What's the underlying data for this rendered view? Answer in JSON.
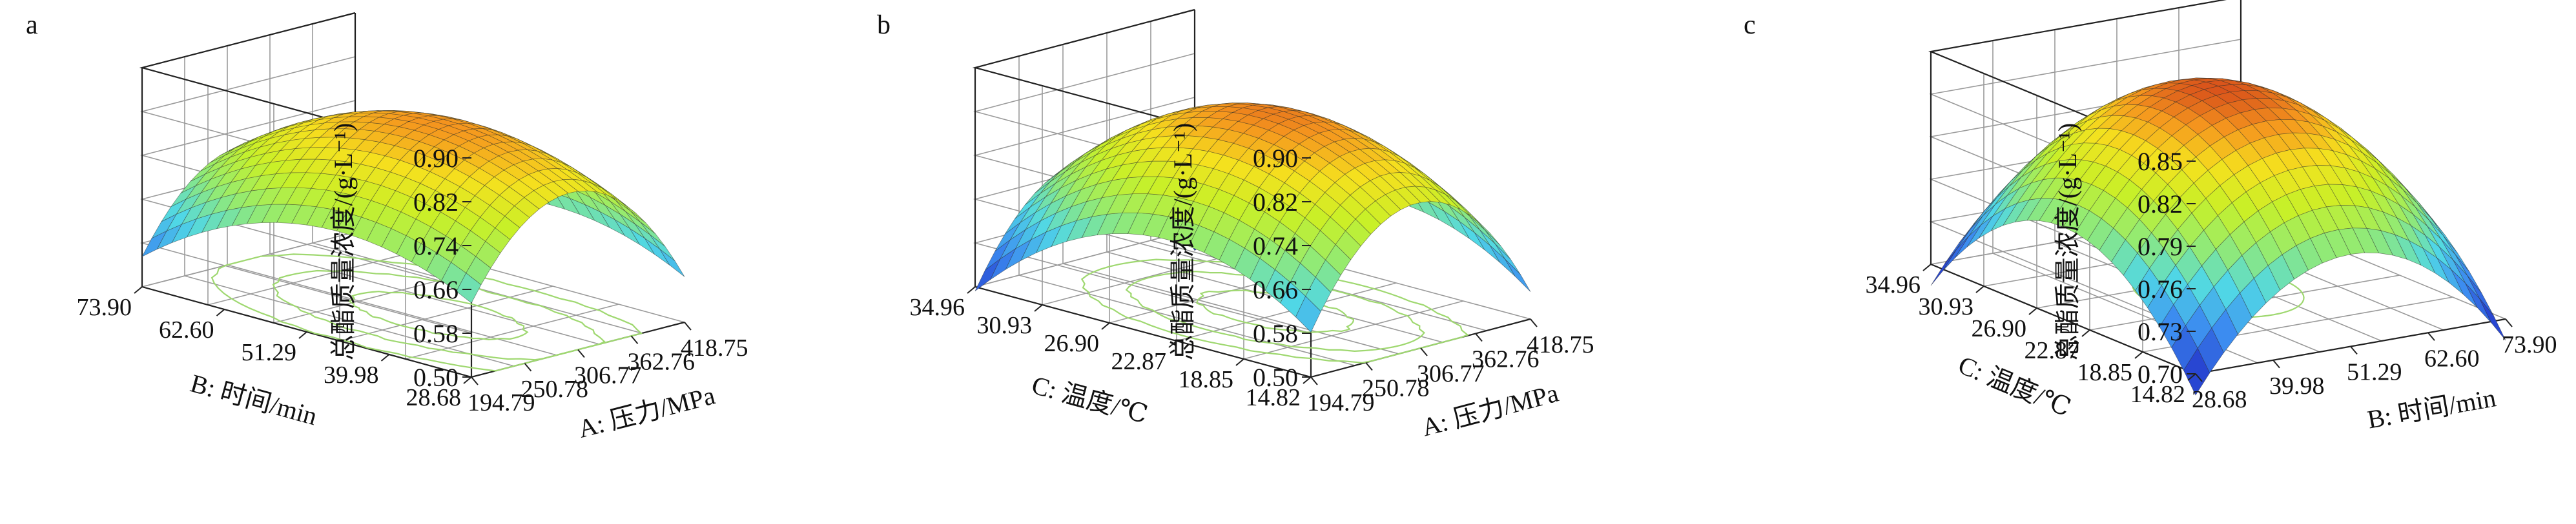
{
  "chart_data": [
    {
      "type": "surface",
      "panel_label": "a",
      "zlabel": "总酯质量浓度/(g·L⁻¹)",
      "z_ticks": [
        "0.50",
        "0.58",
        "0.66",
        "0.74",
        "0.82",
        "0.90"
      ],
      "zlim": [
        0.5,
        0.9
      ],
      "x_axis_label": "A: 压力/MPa",
      "x_ticks": [
        "194.79",
        "250.78",
        "306.77",
        "362.76",
        "418.75"
      ],
      "y_axis_label": "B: 时间/min",
      "y_ticks": [
        "28.68",
        "39.98",
        "51.29",
        "62.60",
        "73.90"
      ],
      "surface": {
        "peak": 0.855,
        "px": 0.45,
        "py": 0.4,
        "ax": 0.18,
        "ay": 0.1,
        "skew": 0.02
      },
      "contour_levels": [
        0.83,
        0.77,
        0.7
      ],
      "grid": true
    },
    {
      "type": "surface",
      "panel_label": "b",
      "zlabel": "总酯质量浓度/(g·L⁻¹)",
      "z_ticks": [
        "0.50",
        "0.58",
        "0.66",
        "0.74",
        "0.82",
        "0.90"
      ],
      "zlim": [
        0.5,
        0.9
      ],
      "x_axis_label": "A: 压力/MPa",
      "x_ticks": [
        "194.79",
        "250.78",
        "306.77",
        "362.76",
        "418.75"
      ],
      "y_axis_label": "C: 温度/℃",
      "y_ticks": [
        "14.82",
        "18.85",
        "22.87",
        "26.90",
        "30.93",
        "34.96"
      ],
      "surface": {
        "peak": 0.865,
        "px": 0.48,
        "py": 0.42,
        "ax": 0.2,
        "ay": 0.14,
        "skew": 0.0
      },
      "contour_levels": [
        0.84,
        0.78,
        0.72
      ],
      "grid": true
    },
    {
      "type": "surface",
      "panel_label": "c",
      "zlabel": "总酯质量浓度/(g·L⁻¹)",
      "z_ticks": [
        "0.70",
        "0.73",
        "0.76",
        "0.79",
        "0.82",
        "0.85"
      ],
      "zlim": [
        0.7,
        0.85
      ],
      "x_axis_label": "B: 时间/min",
      "x_ticks": [
        "28.68",
        "39.98",
        "51.29",
        "62.60",
        "73.90"
      ],
      "y_axis_label": "C: 温度/℃",
      "y_ticks": [
        "14.82",
        "18.85",
        "22.87",
        "26.90",
        "30.93",
        "34.96"
      ],
      "surface": {
        "peak": 0.845,
        "px": 0.5,
        "py": 0.5,
        "ax": 0.08,
        "ay": 0.08,
        "skew": 0.0
      },
      "contour_levels": [
        0.83
      ],
      "grid": true
    }
  ]
}
